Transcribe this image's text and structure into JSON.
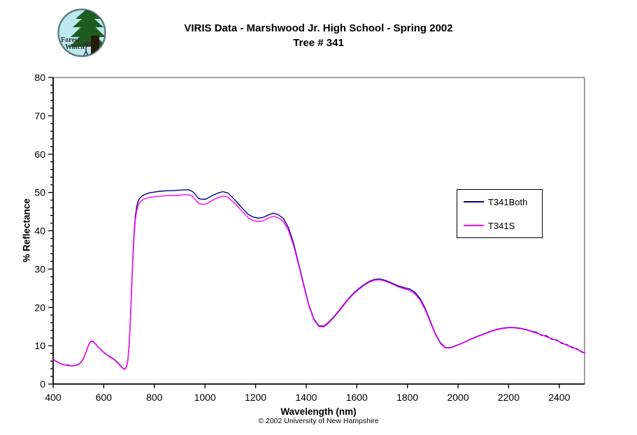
{
  "header": {
    "title_line1": "VIRIS Data - Marshwood Jr. High School - Spring 2002",
    "title_line2": "Tree # 341"
  },
  "logo": {
    "line1": "Forest",
    "line2": "Watch",
    "bg_color": "#bce8ee",
    "ring_color": "#5f7f83",
    "tree_color": "#1e5c21",
    "trunk_color": "#261a0d",
    "figure_color": "#333333",
    "text_color": "#2f2f2f"
  },
  "footer": {
    "copyright": "© 2002 University of New Hampshire"
  },
  "colors": {
    "axis": "#000000",
    "plot_border": "#808080",
    "background": "#ffffff"
  },
  "chart_data": {
    "type": "line",
    "title": "VIRIS Data - Marshwood Jr. High School - Spring 2002, Tree # 341",
    "xlabel": "Wavelength (nm)",
    "ylabel": "% Reflectance",
    "xlim": [
      400,
      2500
    ],
    "ylim": [
      0,
      80
    ],
    "x_ticks": [
      400,
      600,
      800,
      1000,
      1200,
      1400,
      1600,
      1800,
      2000,
      2200,
      2400
    ],
    "y_ticks": [
      0,
      10,
      20,
      30,
      40,
      50,
      60,
      70,
      80
    ],
    "y_minor_step": 2,
    "grid": false,
    "legend_position": "inside-right",
    "x": [
      400,
      410,
      420,
      430,
      440,
      450,
      460,
      470,
      480,
      490,
      500,
      510,
      520,
      530,
      540,
      550,
      560,
      570,
      580,
      590,
      600,
      620,
      640,
      660,
      670,
      680,
      685,
      690,
      695,
      700,
      705,
      710,
      715,
      720,
      725,
      730,
      735,
      740,
      750,
      760,
      780,
      800,
      820,
      840,
      860,
      880,
      900,
      920,
      935,
      950,
      960,
      975,
      990,
      1005,
      1015,
      1030,
      1050,
      1070,
      1090,
      1110,
      1130,
      1150,
      1170,
      1190,
      1210,
      1230,
      1250,
      1270,
      1290,
      1310,
      1330,
      1350,
      1370,
      1390,
      1410,
      1430,
      1450,
      1470,
      1490,
      1510,
      1530,
      1550,
      1570,
      1590,
      1610,
      1630,
      1650,
      1670,
      1690,
      1710,
      1730,
      1750,
      1770,
      1790,
      1810,
      1830,
      1850,
      1870,
      1890,
      1910,
      1930,
      1950,
      1970,
      1990,
      2010,
      2030,
      2050,
      2070,
      2090,
      2110,
      2130,
      2150,
      2170,
      2190,
      2210,
      2230,
      2250,
      2270,
      2290,
      2310,
      2330,
      2350,
      2370,
      2390,
      2410,
      2430,
      2450,
      2470,
      2490,
      2500
    ],
    "series": [
      {
        "name": "T341Both",
        "color": "#000080",
        "values": [
          6.4,
          6.0,
          5.7,
          5.3,
          5.1,
          4.9,
          5.0,
          4.7,
          4.8,
          4.9,
          5.1,
          5.6,
          6.6,
          8.3,
          10.2,
          11.2,
          11.0,
          10.3,
          9.5,
          8.9,
          8.3,
          7.3,
          6.5,
          5.3,
          4.5,
          3.9,
          4.0,
          4.6,
          6.2,
          10.0,
          16.5,
          25.0,
          33.0,
          39.5,
          43.8,
          46.2,
          47.5,
          48.3,
          49.0,
          49.4,
          49.9,
          50.1,
          50.3,
          50.4,
          50.5,
          50.5,
          50.6,
          50.7,
          50.7,
          50.3,
          49.6,
          48.4,
          48.2,
          48.3,
          48.7,
          49.2,
          49.8,
          50.2,
          49.9,
          48.6,
          47.2,
          45.7,
          44.3,
          43.6,
          43.3,
          43.5,
          44.1,
          44.6,
          44.2,
          43.2,
          40.8,
          36.8,
          31.5,
          26.0,
          20.8,
          17.0,
          15.2,
          15.1,
          16.2,
          17.6,
          19.2,
          20.9,
          22.5,
          23.9,
          25.0,
          26.0,
          26.8,
          27.3,
          27.4,
          27.1,
          26.6,
          26.0,
          25.5,
          25.1,
          24.8,
          23.9,
          22.3,
          19.8,
          16.5,
          13.2,
          10.8,
          9.5,
          9.5,
          10.0,
          10.5,
          11.1,
          11.7,
          12.3,
          12.8,
          13.3,
          13.8,
          14.2,
          14.5,
          14.7,
          14.8,
          14.7,
          14.5,
          14.2,
          13.8,
          13.5,
          12.7,
          12.6,
          11.7,
          11.5,
          10.6,
          10.3,
          9.5,
          9.2,
          8.3,
          8.1
        ]
      },
      {
        "name": "T341S",
        "color": "#ff00ff",
        "values": [
          6.3,
          6.1,
          5.6,
          5.4,
          5.0,
          5.0,
          4.8,
          4.8,
          4.7,
          5.0,
          5.2,
          5.7,
          6.7,
          8.4,
          10.3,
          11.3,
          11.1,
          10.2,
          9.6,
          8.8,
          8.2,
          7.2,
          6.4,
          5.2,
          4.4,
          3.8,
          3.9,
          4.5,
          6.0,
          9.7,
          16.0,
          24.3,
          32.2,
          38.6,
          42.8,
          45.2,
          46.4,
          47.2,
          47.9,
          48.3,
          48.7,
          48.9,
          49.0,
          49.1,
          49.2,
          49.2,
          49.3,
          49.4,
          49.4,
          49.0,
          48.3,
          47.1,
          46.9,
          47.0,
          47.4,
          48.0,
          48.6,
          49.0,
          48.8,
          47.6,
          46.3,
          44.8,
          43.4,
          42.7,
          42.4,
          42.6,
          43.3,
          43.8,
          43.4,
          42.4,
          40.1,
          36.2,
          31.1,
          25.6,
          20.5,
          16.8,
          15.0,
          14.9,
          16.0,
          17.4,
          19.0,
          20.7,
          22.3,
          23.7,
          24.8,
          25.8,
          26.6,
          27.1,
          27.2,
          26.9,
          26.4,
          25.8,
          25.2,
          24.8,
          24.4,
          23.5,
          21.9,
          19.4,
          16.2,
          13.0,
          10.6,
          9.4,
          9.4,
          9.9,
          10.4,
          11.0,
          11.6,
          12.2,
          12.7,
          13.2,
          13.7,
          14.1,
          14.4,
          14.6,
          14.7,
          14.6,
          14.4,
          14.1,
          13.7,
          13.3,
          12.9,
          12.3,
          11.9,
          11.3,
          10.8,
          10.1,
          9.7,
          9.0,
          8.5,
          8.0
        ]
      }
    ]
  }
}
